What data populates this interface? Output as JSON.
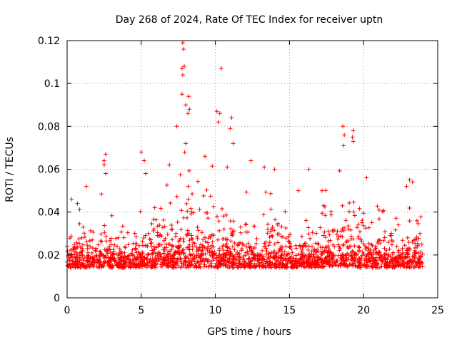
{
  "chart_data": {
    "type": "scatter",
    "title": "Day 268 of 2024, Rate Of TEC Index for receiver uptn",
    "xlabel": "GPS time / hours",
    "ylabel": "ROTI / TECUs",
    "xlim": [
      0,
      25
    ],
    "ylim": [
      0,
      0.12
    ],
    "x_ticks": [
      0,
      5,
      10,
      15,
      20,
      25
    ],
    "x_tick_labels": [
      "0",
      "5",
      "10",
      "15",
      "20",
      "25"
    ],
    "y_ticks": [
      0,
      0.02,
      0.04,
      0.06,
      0.08,
      0.1,
      0.12
    ],
    "y_tick_labels": [
      "0",
      "0.02",
      "0.04",
      "0.06",
      "0.08",
      "0.1",
      "0.12"
    ],
    "grid": true,
    "marker": "+",
    "color": "#ff0000",
    "x_data_range": [
      0,
      24
    ],
    "dense_band": [
      0.005,
      0.025
    ],
    "series": [
      {
        "points": [
          [
            7.8,
            0.119
          ],
          [
            7.85,
            0.116
          ],
          [
            7.9,
            0.108
          ],
          [
            7.75,
            0.107
          ],
          [
            7.8,
            0.104
          ],
          [
            10.4,
            0.107
          ],
          [
            7.75,
            0.095
          ],
          [
            8.2,
            0.094
          ],
          [
            8.0,
            0.09
          ],
          [
            8.25,
            0.088
          ],
          [
            10.1,
            0.087
          ],
          [
            8.15,
            0.086
          ],
          [
            10.3,
            0.086
          ],
          [
            11.1,
            0.084
          ],
          [
            10.2,
            0.082
          ],
          [
            7.4,
            0.08
          ],
          [
            11.0,
            0.079
          ],
          [
            18.6,
            0.08
          ],
          [
            19.3,
            0.078
          ],
          [
            18.7,
            0.076
          ],
          [
            19.25,
            0.075
          ],
          [
            19.3,
            0.073
          ],
          [
            18.65,
            0.071
          ],
          [
            11.2,
            0.072
          ],
          [
            8.0,
            0.072
          ],
          [
            2.6,
            0.067
          ],
          [
            5.0,
            0.068
          ],
          [
            9.3,
            0.066
          ],
          [
            2.5,
            0.064
          ],
          [
            5.2,
            0.064
          ],
          [
            2.5,
            0.062
          ],
          [
            12.4,
            0.064
          ],
          [
            6.9,
            0.062
          ],
          [
            10.8,
            0.061
          ],
          [
            16.3,
            0.06
          ],
          [
            13.3,
            0.061
          ],
          [
            14.0,
            0.06
          ],
          [
            2.6,
            0.058
          ],
          [
            5.3,
            0.058
          ],
          [
            20.2,
            0.056
          ],
          [
            23.1,
            0.055
          ],
          [
            23.3,
            0.054
          ],
          [
            1.3,
            0.052
          ],
          [
            22.9,
            0.052
          ],
          [
            15.6,
            0.05
          ],
          [
            17.2,
            0.05
          ],
          [
            0.3,
            0.046
          ],
          [
            0.7,
            0.044
          ],
          [
            23.6,
            0.036
          ],
          [
            23.8,
            0.03
          ]
        ]
      }
    ],
    "generator": {
      "seed": 268,
      "count": 9000
    }
  }
}
